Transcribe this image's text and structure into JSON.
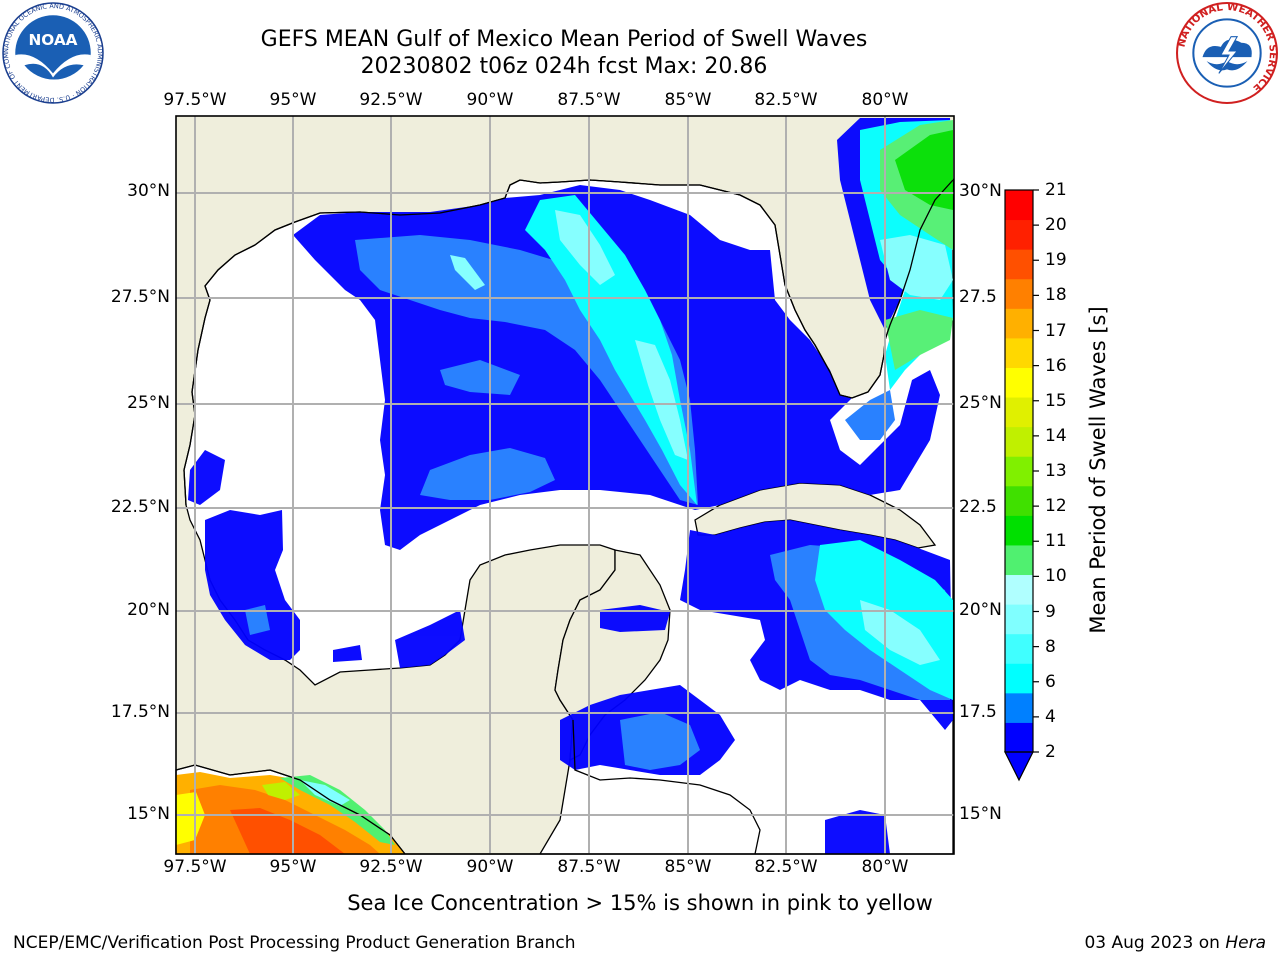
{
  "title": {
    "line1": "GEFS MEAN Gulf of Mexico Mean Period of Swell Waves",
    "line2": "20230802 t06z 024h fcst   Max: 20.86"
  },
  "map": {
    "lon_labels": [
      "97.5°W",
      "95°W",
      "92.5°W",
      "90°W",
      "87.5°W",
      "85°W",
      "82.5°W",
      "80°W"
    ],
    "lat_labels_left": [
      "30°N",
      "27.5°N",
      "25°N",
      "22.5°N",
      "20°N",
      "17.5°N",
      "15°N"
    ],
    "lat_labels_right": [
      "30°N",
      "27.5",
      "25°N",
      "22.5",
      "20°N",
      "17.5",
      "15°N"
    ],
    "land_color": "#efeedc",
    "no_data_color": "#ffffff",
    "grid_color": "#b0b0b0"
  },
  "colorbar": {
    "label": "Mean Period of Swell Waves [s]",
    "ticks": [
      "21",
      "20",
      "19",
      "18",
      "17",
      "16",
      "15",
      "14",
      "13",
      "12",
      "11",
      "10",
      "9",
      "8",
      "6",
      "4",
      "2"
    ],
    "colors": [
      "#0000ff",
      "#0080ff",
      "#00ffff",
      "#40ffff",
      "#80ffff",
      "#b0ffff",
      "#50f070",
      "#00e000",
      "#40e000",
      "#80f000",
      "#c0f000",
      "#e0f000",
      "#ffff00",
      "#ffd800",
      "#ffb000",
      "#ff8000",
      "#ff5000",
      "#ff2000",
      "#ff0000"
    ]
  },
  "note": "Sea Ice Concentration > 15% is shown in pink to yellow",
  "footer": {
    "left": "NCEP/EMC/Verification Post Processing Product Generation Branch",
    "date": "03 Aug 2023 on ",
    "machine": "Hera"
  },
  "logos": {
    "noaa_text": "NOAA",
    "noaa_ring": "NATIONAL OCEANIC AND ATMOSPHERIC ADMINISTRATION · U.S. DEPARTMENT OF COMMERCE",
    "nws_ring": "NATIONAL WEATHER SERVICE"
  }
}
